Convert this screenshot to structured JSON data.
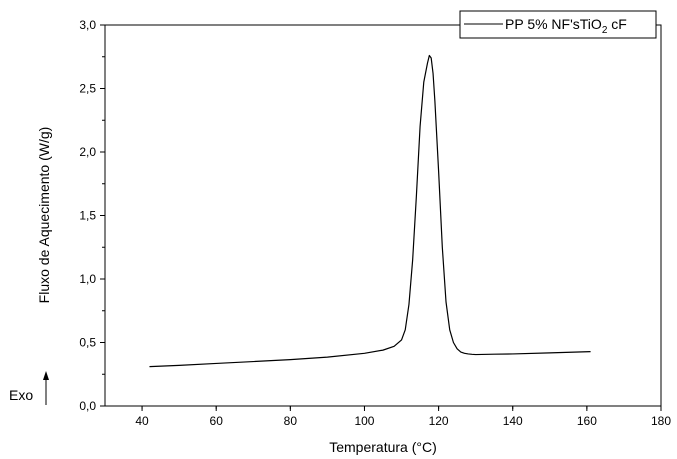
{
  "chart_data": {
    "type": "line",
    "title": "",
    "xlabel": "Temperatura (°C)",
    "ylabel": "Fluxo de Aquecimento (W/g)",
    "xlim": [
      30,
      180
    ],
    "ylim": [
      0,
      3
    ],
    "x_ticks": [
      "40",
      "60",
      "80",
      "100",
      "120",
      "140",
      "160",
      "180"
    ],
    "y_ticks": [
      "0,0",
      "0,5",
      "1,0",
      "1,5",
      "2,0",
      "2,5",
      "3,0"
    ],
    "grid": false,
    "legend_position": "top-right",
    "annotation": "Exo",
    "series": [
      {
        "name": "PP 5% NF'sTiO2 cF",
        "name_main": "PP 5% NF'sTiO",
        "name_sub": "2",
        "name_tail": " cF",
        "color": "#000000",
        "x": [
          42,
          50,
          60,
          70,
          80,
          90,
          100,
          105,
          108,
          110,
          111,
          112,
          113,
          114,
          115,
          116,
          117,
          117.5,
          118,
          118.5,
          119,
          120,
          121,
          122,
          123,
          124,
          125,
          126,
          127,
          128,
          129,
          130,
          135,
          140,
          150,
          161
        ],
        "y": [
          0.31,
          0.32,
          0.335,
          0.35,
          0.365,
          0.385,
          0.415,
          0.44,
          0.47,
          0.52,
          0.6,
          0.8,
          1.15,
          1.65,
          2.2,
          2.55,
          2.7,
          2.76,
          2.74,
          2.62,
          2.4,
          1.85,
          1.25,
          0.82,
          0.6,
          0.5,
          0.45,
          0.425,
          0.415,
          0.41,
          0.407,
          0.405,
          0.408,
          0.41,
          0.418,
          0.428
        ]
      }
    ]
  }
}
